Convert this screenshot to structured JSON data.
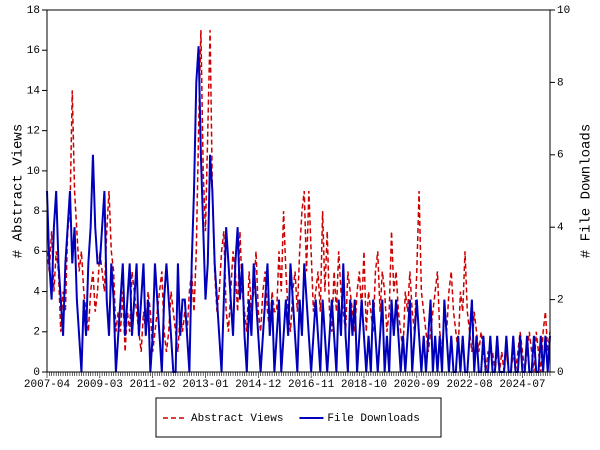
{
  "chart_data": {
    "type": "line",
    "y_label": "# Abstract Views",
    "y2_label": "# File Downloads",
    "categories": [
      "2007-04",
      null,
      null,
      null,
      null,
      null,
      null,
      null,
      null,
      null,
      null,
      null,
      null,
      null,
      null,
      null,
      null,
      null,
      null,
      null,
      null,
      null,
      null,
      "2009-03",
      null,
      null,
      null,
      null,
      null,
      null,
      null,
      null,
      null,
      null,
      null,
      null,
      null,
      null,
      null,
      null,
      null,
      null,
      null,
      null,
      null,
      null,
      "2011-02",
      null,
      null,
      null,
      null,
      null,
      null,
      null,
      null,
      null,
      null,
      null,
      null,
      null,
      null,
      null,
      null,
      null,
      null,
      null,
      null,
      null,
      null,
      "2013-01",
      null,
      null,
      null,
      null,
      null,
      null,
      null,
      null,
      null,
      null,
      null,
      null,
      null,
      null,
      null,
      null,
      null,
      null,
      null,
      null,
      null,
      null,
      "2014-12",
      null,
      null,
      null,
      null,
      null,
      null,
      null,
      null,
      null,
      null,
      null,
      null,
      null,
      null,
      null,
      null,
      null,
      null,
      null,
      null,
      null,
      null,
      "2016-11",
      null,
      null,
      null,
      null,
      null,
      null,
      null,
      null,
      null,
      null,
      null,
      null,
      null,
      null,
      null,
      null,
      null,
      null,
      null,
      null,
      null,
      null,
      "2018-10",
      null,
      null,
      null,
      null,
      null,
      null,
      null,
      null,
      null,
      null,
      null,
      null,
      null,
      null,
      null,
      null,
      null,
      null,
      null,
      null,
      null,
      null,
      "2020-09",
      null,
      null,
      null,
      null,
      null,
      null,
      null,
      null,
      null,
      null,
      null,
      null,
      null,
      null,
      null,
      null,
      null,
      null,
      null,
      null,
      null,
      null,
      "2022-08",
      null,
      null,
      null,
      null,
      null,
      null,
      null,
      null,
      null,
      null,
      null,
      null,
      null,
      null,
      null,
      null,
      null,
      null,
      null,
      null,
      null,
      null,
      "2024-07",
      null,
      null,
      null,
      null,
      null,
      null,
      null,
      null,
      null,
      null,
      null,
      null
    ],
    "series": [
      {
        "name": "Abstract Views",
        "color": "#cc0000",
        "dash": true,
        "axis": "y",
        "values": [
          6,
          5,
          7,
          4,
          6,
          5,
          2,
          4,
          3,
          7,
          8,
          14,
          9,
          7,
          5,
          6,
          4,
          3,
          2,
          4,
          5,
          3,
          4,
          6,
          5,
          4,
          7,
          9,
          6,
          5,
          2,
          3,
          2,
          4,
          1,
          3,
          2,
          5,
          4,
          3,
          2,
          1,
          3,
          2,
          4,
          3,
          1,
          2,
          3,
          4,
          5,
          2,
          1,
          2,
          4,
          3,
          2,
          1,
          3,
          2,
          3,
          2,
          4,
          5,
          3,
          6,
          12,
          17,
          10,
          7,
          12,
          17,
          9,
          5,
          3,
          4,
          6,
          7,
          3,
          2,
          4,
          6,
          5,
          3,
          7,
          4,
          3,
          2,
          5,
          3,
          4,
          6,
          3,
          2,
          4,
          5,
          3,
          2,
          4,
          3,
          3,
          6,
          4,
          8,
          5,
          3,
          2,
          4,
          5,
          3,
          6,
          8,
          9,
          5,
          9,
          6,
          3,
          4,
          5,
          3,
          8,
          4,
          7,
          3,
          2,
          5,
          3,
          6,
          4,
          3,
          2,
          5,
          4,
          3,
          2,
          4,
          5,
          3,
          6,
          2,
          4,
          3,
          2,
          5,
          6,
          3,
          5,
          4,
          2,
          3,
          7,
          4,
          5,
          3,
          2,
          1,
          4,
          3,
          5,
          3,
          2,
          5,
          9,
          4,
          3,
          2,
          1,
          2,
          3,
          4,
          5,
          2,
          1,
          3,
          2,
          4,
          5,
          3,
          2,
          1,
          4,
          3,
          6,
          3,
          2,
          1,
          3,
          2,
          1,
          2,
          1,
          0,
          1,
          1,
          1,
          0,
          1,
          0,
          1,
          0,
          1,
          0,
          0,
          1,
          0,
          1,
          2,
          1,
          0,
          1,
          2,
          1,
          0,
          2,
          1,
          0,
          2,
          3,
          1,
          2
        ]
      },
      {
        "name": "File Downloads",
        "color": "#0000bb",
        "dash": false,
        "axis": "y2",
        "values": [
          5,
          3,
          2,
          4,
          5,
          3,
          2,
          1,
          3,
          4,
          5,
          3,
          4,
          2,
          1,
          0,
          2,
          1,
          3,
          4,
          6,
          4,
          3,
          3,
          4,
          5,
          2,
          1,
          3,
          2,
          0,
          1,
          2,
          3,
          1,
          2,
          3,
          1,
          2,
          3,
          1,
          2,
          3,
          1,
          2,
          0,
          1,
          3,
          2,
          1,
          0,
          2,
          3,
          2,
          1,
          0,
          0,
          3,
          1,
          2,
          2,
          1,
          0,
          3,
          5,
          8,
          9,
          6,
          4,
          2,
          3,
          6,
          5,
          3,
          2,
          1,
          0,
          2,
          4,
          3,
          2,
          1,
          3,
          4,
          2,
          3,
          1,
          0,
          2,
          1,
          3,
          2,
          1,
          0,
          1,
          2,
          3,
          1,
          2,
          0,
          1,
          2,
          0,
          1,
          2,
          1,
          3,
          2,
          1,
          0,
          2,
          1,
          3,
          2,
          1,
          0,
          1,
          2,
          1,
          0,
          2,
          1,
          0,
          1,
          2,
          1,
          0,
          2,
          1,
          3,
          1,
          0,
          2,
          1,
          2,
          0,
          1,
          2,
          1,
          0,
          1,
          0,
          2,
          1,
          0,
          1,
          2,
          0,
          1,
          0,
          2,
          1,
          2,
          1,
          0,
          1,
          0,
          1,
          2,
          0,
          1,
          2,
          1,
          0,
          1,
          0,
          1,
          2,
          0,
          1,
          0,
          1,
          0,
          2,
          1,
          0,
          1,
          0,
          0,
          1,
          0,
          1,
          0,
          0,
          1,
          2,
          0,
          1,
          0,
          0,
          1,
          0,
          0,
          1,
          0,
          0,
          1,
          0,
          0,
          0,
          1,
          0,
          0,
          1,
          0,
          0,
          1,
          0,
          0,
          1,
          0,
          0,
          1,
          0,
          0,
          1,
          0,
          1,
          0,
          1
        ]
      }
    ],
    "ylim": [
      0,
      18
    ],
    "yticks": [
      0,
      2,
      4,
      6,
      8,
      10,
      12,
      14,
      16,
      18
    ],
    "y2lim": [
      0,
      10
    ],
    "y2ticks": [
      0,
      2,
      4,
      6,
      8,
      10
    ],
    "legend": "bottom"
  }
}
